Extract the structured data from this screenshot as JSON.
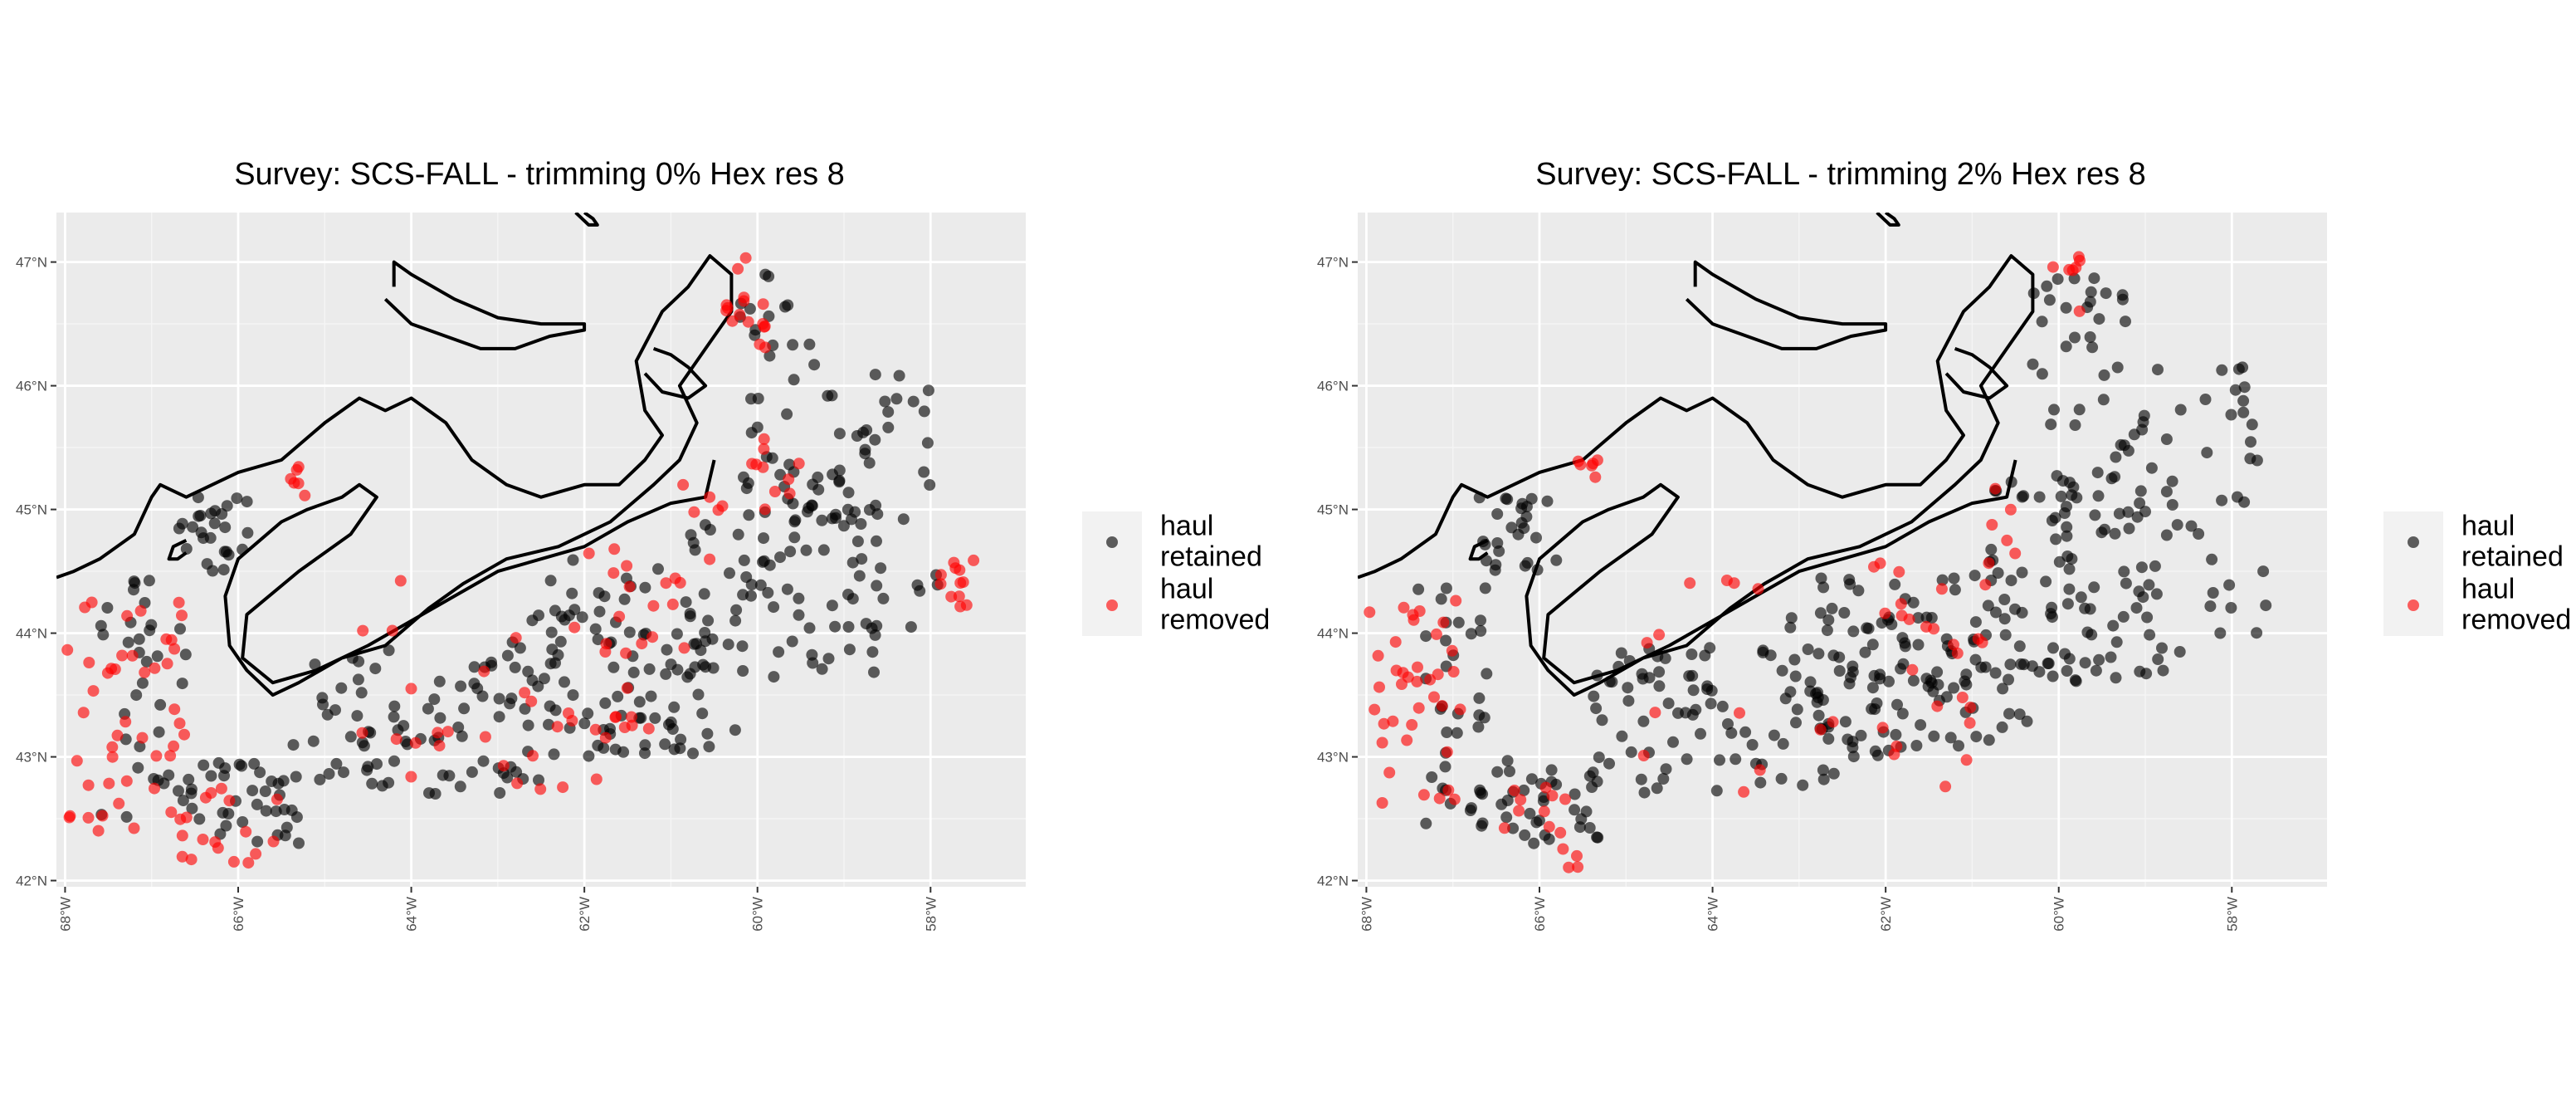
{
  "chart_data": [
    {
      "type": "scatter",
      "title": "Survey: SCS-FALL - trimming 0% Hex res 8",
      "xlabel": "",
      "ylabel": "",
      "x_ticks": [
        {
          "value": -68,
          "label": "68°W"
        },
        {
          "value": -66,
          "label": "66°W"
        },
        {
          "value": -64,
          "label": "64°W"
        },
        {
          "value": -62,
          "label": "62°W"
        },
        {
          "value": -60,
          "label": "60°W"
        },
        {
          "value": -58,
          "label": "58°W"
        }
      ],
      "y_ticks": [
        {
          "value": 42,
          "label": "42°N"
        },
        {
          "value": 43,
          "label": "43°N"
        },
        {
          "value": 44,
          "label": "44°N"
        },
        {
          "value": 45,
          "label": "45°N"
        },
        {
          "value": 46,
          "label": "46°N"
        },
        {
          "value": 47,
          "label": "47°N"
        }
      ],
      "xlim": [
        -68.1,
        -56.9
      ],
      "ylim": [
        41.95,
        47.4
      ],
      "grid": true,
      "legend_position": "right",
      "legend": [
        {
          "label_lines": [
            "haul",
            "retained"
          ],
          "color": "#000000"
        },
        {
          "label_lines": [
            "haul",
            "removed"
          ],
          "color": "#ff0000"
        }
      ],
      "series": [
        {
          "name": "haul retained",
          "color": "#000000",
          "regions": [
            [
              -67.6,
              -66.6,
              42.5,
              44.5,
              35
            ],
            [
              -66.7,
              -65.3,
              42.3,
              43.0,
              38
            ],
            [
              -65.4,
              -62.5,
              42.7,
              43.9,
              75
            ],
            [
              -62.8,
              -60.5,
              43.0,
              44.6,
              70
            ],
            [
              -60.8,
              -58.6,
              43.6,
              45.3,
              70
            ],
            [
              -60.3,
              -57.8,
              44.0,
              46.2,
              65
            ],
            [
              -60.2,
              -59.3,
              46.2,
              46.9,
              14
            ],
            [
              -66.7,
              -65.8,
              44.5,
              45.1,
              26
            ],
            [
              -63.2,
              -60.2,
              43.2,
              44.2,
              40
            ]
          ]
        },
        {
          "name": "haul removed",
          "color": "#ff0000",
          "regions": [
            [
              -68.0,
              -66.6,
              42.4,
              44.3,
              45
            ],
            [
              -66.7,
              -65.5,
              42.1,
              42.8,
              18
            ],
            [
              -62.2,
              -60.8,
              43.2,
              44.7,
              22
            ],
            [
              -64.8,
              -61.0,
              42.7,
              44.5,
              28
            ],
            [
              -60.4,
              -59.9,
              46.3,
              47.1,
              16
            ],
            [
              -60.1,
              -59.5,
              44.8,
              45.8,
              10
            ],
            [
              -57.9,
              -57.5,
              44.2,
              44.6,
              12
            ],
            [
              -65.6,
              -65.2,
              45.1,
              45.4,
              6
            ],
            [
              -61.0,
              -60.4,
              44.4,
              45.2,
              8
            ]
          ]
        }
      ]
    },
    {
      "type": "scatter",
      "title": "Survey: SCS-FALL - trimming 2% Hex res 8",
      "xlabel": "",
      "ylabel": "",
      "x_ticks": [
        {
          "value": -68,
          "label": "68°W"
        },
        {
          "value": -66,
          "label": "66°W"
        },
        {
          "value": -64,
          "label": "64°W"
        },
        {
          "value": -62,
          "label": "62°W"
        },
        {
          "value": -60,
          "label": "60°W"
        },
        {
          "value": -58,
          "label": "58°W"
        }
      ],
      "y_ticks": [
        {
          "value": 42,
          "label": "42°N"
        },
        {
          "value": 43,
          "label": "43°N"
        },
        {
          "value": 44,
          "label": "44°N"
        },
        {
          "value": 45,
          "label": "45°N"
        },
        {
          "value": 46,
          "label": "46°N"
        },
        {
          "value": 47,
          "label": "47°N"
        }
      ],
      "xlim": [
        -68.1,
        -56.9
      ],
      "ylim": [
        41.95,
        47.4
      ],
      "grid": true,
      "legend_position": "right",
      "legend": [
        {
          "label_lines": [
            "haul",
            "retained"
          ],
          "color": "#000000"
        },
        {
          "label_lines": [
            "haul",
            "removed"
          ],
          "color": "#ff0000"
        }
      ],
      "series": [
        {
          "name": "haul retained",
          "color": "#000000",
          "regions": [
            [
              -67.4,
              -66.6,
              42.4,
              44.4,
              34
            ],
            [
              -66.7,
              -65.3,
              42.3,
              43.0,
              40
            ],
            [
              -65.4,
              -62.5,
              42.7,
              43.9,
              80
            ],
            [
              -62.8,
              -60.5,
              43.0,
              44.6,
              78
            ],
            [
              -60.8,
              -58.6,
              43.6,
              45.3,
              78
            ],
            [
              -60.3,
              -57.6,
              44.0,
              46.2,
              75
            ],
            [
              -60.3,
              -59.2,
              46.2,
              46.9,
              20
            ],
            [
              -66.7,
              -65.8,
              44.5,
              45.1,
              26
            ],
            [
              -63.2,
              -60.2,
              43.2,
              44.2,
              45
            ]
          ]
        },
        {
          "name": "haul removed",
          "color": "#ff0000",
          "regions": [
            [
              -68.0,
              -66.8,
              42.5,
              44.3,
              38
            ],
            [
              -66.7,
              -65.5,
              42.1,
              42.8,
              14
            ],
            [
              -62.2,
              -60.8,
              43.2,
              44.7,
              18
            ],
            [
              -64.8,
              -61.0,
              42.7,
              44.5,
              20
            ],
            [
              -60.1,
              -59.7,
              46.6,
              47.1,
              7
            ],
            [
              -65.6,
              -65.2,
              45.1,
              45.4,
              6
            ],
            [
              -61.0,
              -60.4,
              44.4,
              45.2,
              6
            ]
          ]
        }
      ]
    }
  ]
}
